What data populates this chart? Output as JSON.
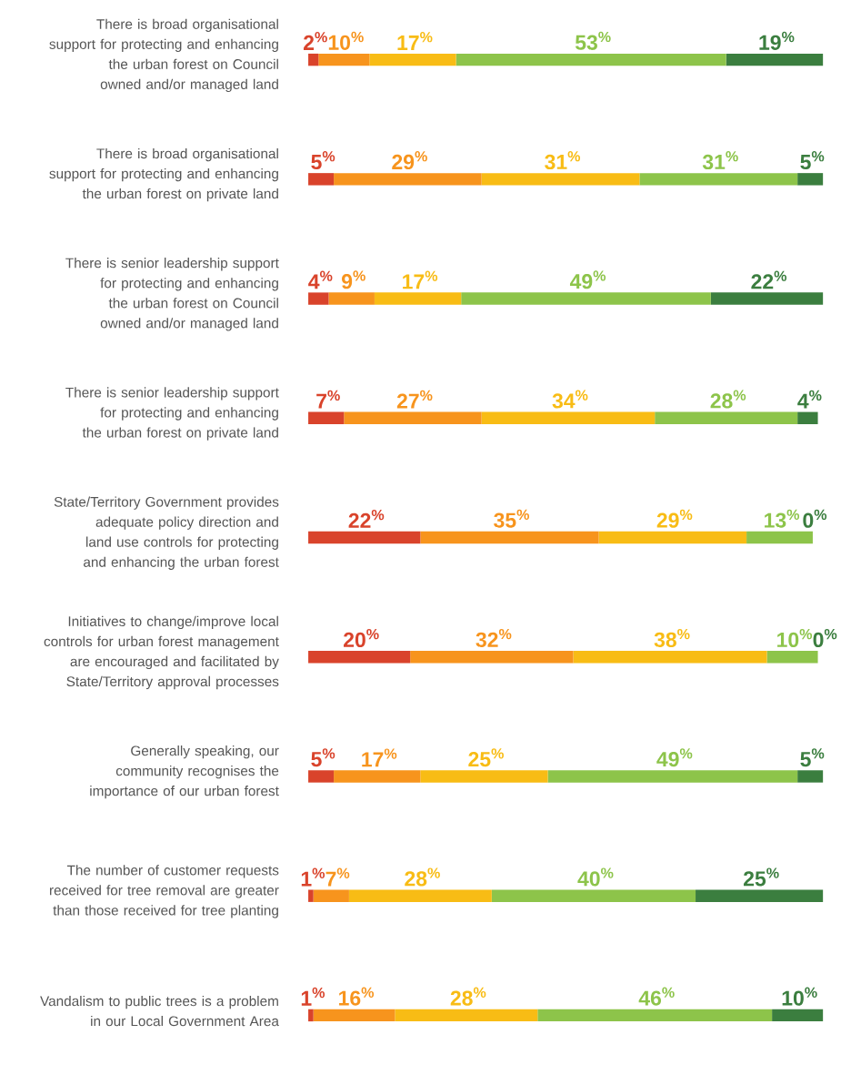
{
  "chart_data": {
    "type": "bar",
    "orientation": "horizontal",
    "stacked": true,
    "xlim": [
      0,
      101
    ],
    "categories": [
      "There is broad organisational support for protecting and enhancing the urban forest on Council owned and/or managed land",
      "There is broad organisational support for protecting and enhancing the urban forest on private land",
      "There is senior leadership support for protecting and enhancing the urban forest on Council owned and/or managed land",
      "There is senior leadership support for protecting and enhancing the urban forest on private land",
      "State/Territory Government provides adequate policy direction and land use controls for protecting and enhancing the urban forest",
      "Initiatives to change/improve local controls for urban forest management are encouraged and facilitated by State/Territory approval processes",
      "Generally speaking, our community recognises the importance of our urban forest",
      "The number of customer requests received for tree removal are greater than those received for tree planting",
      "Vandalism to public trees is a problem in our Local Government Area"
    ],
    "series": [
      {
        "color": "#d9432b",
        "values": [
          2,
          5,
          4,
          7,
          22,
          20,
          5,
          1,
          1
        ],
        "value_labels": [
          "2$^{%}$",
          "5$^{%}$",
          "4$^{%}$",
          "7$^{%}$",
          "22$^{%}$",
          "20$^{%}$",
          "5$^{%}$",
          "1$^{%}$",
          "1$^{%}$"
        ]
      },
      {
        "color": "#f7941d",
        "values": [
          10,
          29,
          9,
          27,
          35,
          32,
          17,
          7,
          16
        ],
        "value_labels": [
          "10$^{%}$",
          "29$^{%}$",
          "9$^{%}$",
          "27$^{%}$",
          "35$^{%}$",
          "32$^{%}$",
          "17$^{%}$",
          "7$^{%}$",
          "16$^{%}$"
        ]
      },
      {
        "color": "#f8bc15",
        "values": [
          17,
          31,
          17,
          34,
          29,
          38,
          25,
          28,
          28
        ],
        "value_labels": [
          "17$^{%}$",
          "31$^{%}$",
          "17$^{%}$",
          "34$^{%}$",
          "29$^{%}$",
          "38$^{%}$",
          "25$^{%}$",
          "28$^{%}$",
          "28$^{%}$"
        ]
      },
      {
        "color": "#8dc44a",
        "values": [
          53,
          31,
          49,
          28,
          13,
          10,
          49,
          40,
          46
        ],
        "value_labels": [
          "53$^{%}$",
          "31$^{%}$",
          "49$^{%}$",
          "28$^{%}$",
          "13$^{%}$",
          "10$^{%}$",
          "49$^{%}$",
          "40$^{%}$",
          "46$^{%}$"
        ]
      },
      {
        "color": "#3b7e3f",
        "values": [
          19,
          5,
          22,
          4,
          0,
          0,
          5,
          25,
          10
        ],
        "value_labels": [
          "19$^{%}$",
          "5$^{%}$",
          "22$^{%}$",
          "4$^{%}$",
          "0$^{%}$",
          "0$^{%}$",
          "5$^{%}$",
          "25$^{%}$",
          "10$^{%}$"
        ]
      }
    ]
  }
}
